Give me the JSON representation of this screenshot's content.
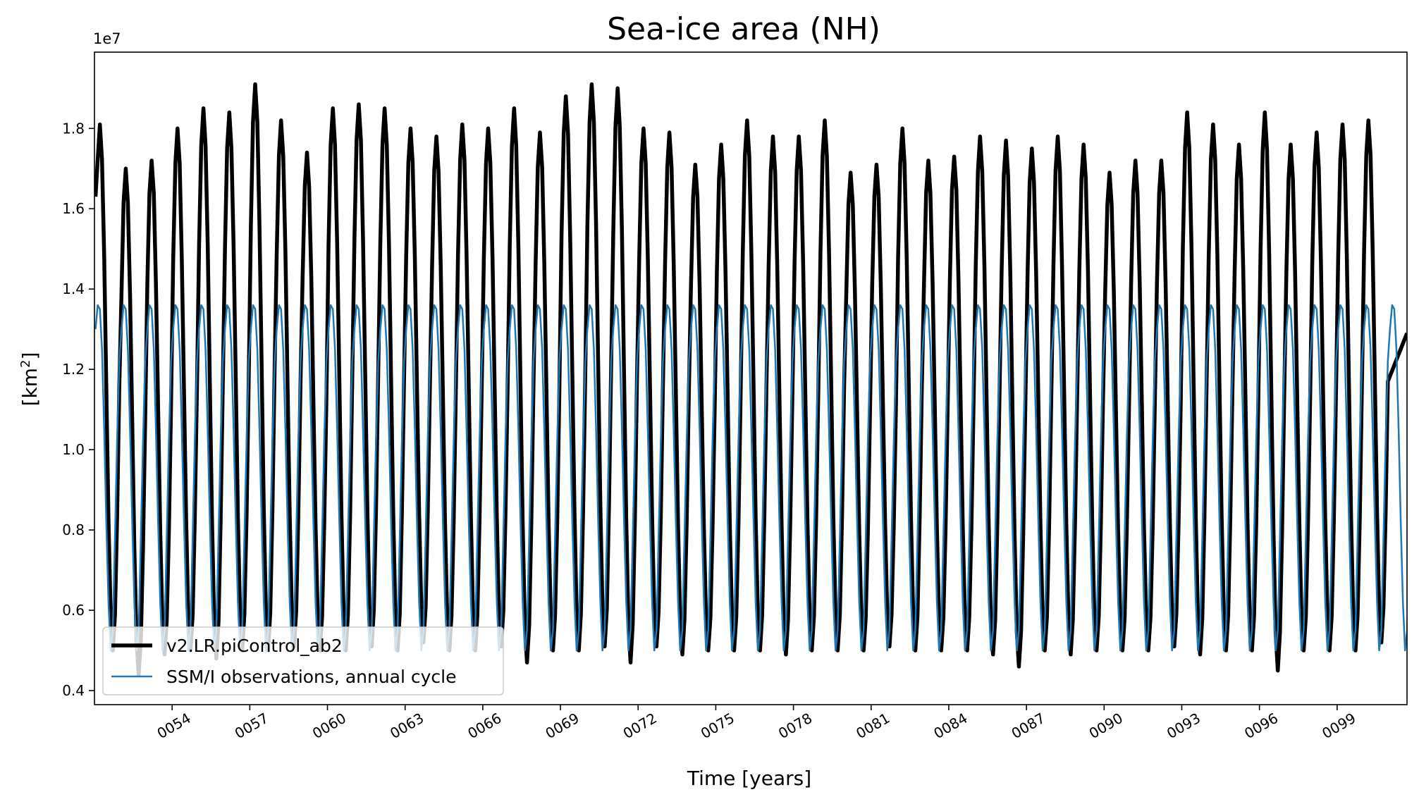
{
  "chart_data": {
    "type": "line",
    "title": "Sea-ice area (NH)",
    "xlabel": "Time [years]",
    "ylabel_main": "[km",
    "ylabel_sup": "2",
    "ylabel_close": "]",
    "y_offset_text": "1e7",
    "xlim": [
      51,
      101.7
    ],
    "ylim": [
      0.365,
      1.99
    ],
    "y_ticks": [
      0.4,
      0.6,
      0.8,
      1.0,
      1.2,
      1.4,
      1.6,
      1.8
    ],
    "y_tick_labels": [
      "0.4",
      "0.6",
      "0.8",
      "1.0",
      "1.2",
      "1.4",
      "1.6",
      "1.8"
    ],
    "x_ticks": [
      54,
      57,
      60,
      63,
      66,
      69,
      72,
      75,
      78,
      81,
      84,
      87,
      90,
      93,
      96,
      99
    ],
    "x_tick_labels": [
      "0054",
      "0057",
      "0060",
      "0063",
      "0066",
      "0069",
      "0072",
      "0075",
      "0078",
      "0081",
      "0084",
      "0087",
      "0090",
      "0093",
      "0096",
      "0099"
    ],
    "grid": false,
    "legend_position": "lower-left",
    "series": [
      {
        "name": "v2.LR.piControl_ab2",
        "color": "#000000",
        "annual_max": [
          1.81,
          1.7,
          1.72,
          1.8,
          1.85,
          1.84,
          1.91,
          1.82,
          1.74,
          1.85,
          1.86,
          1.85,
          1.8,
          1.78,
          1.81,
          1.8,
          1.85,
          1.79,
          1.88,
          1.91,
          1.9,
          1.8,
          1.79,
          1.71,
          1.76,
          1.82,
          1.78,
          1.78,
          1.82,
          1.69,
          1.71,
          1.8,
          1.72,
          1.73,
          1.78,
          1.77,
          1.75,
          1.78,
          1.76,
          1.69,
          1.72,
          1.72,
          1.84,
          1.81,
          1.76,
          1.84,
          1.76,
          1.79,
          1.81,
          1.82
        ],
        "annual_min": [
          0.5,
          0.44,
          0.49,
          0.5,
          0.48,
          0.5,
          0.5,
          0.51,
          0.5,
          0.5,
          0.51,
          0.5,
          0.52,
          0.5,
          0.5,
          0.51,
          0.47,
          0.5,
          0.5,
          0.51,
          0.47,
          0.51,
          0.49,
          0.5,
          0.5,
          0.5,
          0.49,
          0.5,
          0.5,
          0.5,
          0.51,
          0.5,
          0.5,
          0.5,
          0.49,
          0.46,
          0.5,
          0.49,
          0.5,
          0.5,
          0.5,
          0.51,
          0.49,
          0.5,
          0.5,
          0.45,
          0.5,
          0.5,
          0.5,
          0.52
        ],
        "start_value": 1.63,
        "end_value": 1.29
      },
      {
        "name": "SSM/I observations, annual cycle",
        "color": "#1f77b4",
        "annual_cycle": [
          1.3,
          1.36,
          1.35,
          1.25,
          1.05,
          0.82,
          0.62,
          0.5,
          0.55,
          0.78,
          1.02,
          1.22
        ]
      }
    ]
  }
}
